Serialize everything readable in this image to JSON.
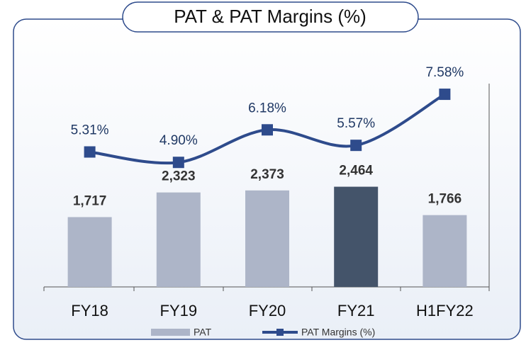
{
  "chart_data": {
    "type": "bar",
    "title": "PAT & PAT Margins (%)",
    "categories": [
      "FY18",
      "FY19",
      "FY20",
      "FY21",
      "H1FY22"
    ],
    "series": [
      {
        "name": "PAT",
        "type": "bar",
        "color": "#adb5c8",
        "colors": [
          "#adb5c8",
          "#adb5c8",
          "#adb5c8",
          "#44546a",
          "#adb5c8"
        ],
        "values": [
          1717,
          2323,
          2373,
          2464,
          1766
        ],
        "value_labels": [
          "1,717",
          "2,323",
          "2,373",
          "2,464",
          "1,766"
        ]
      },
      {
        "name": "PAT Margins (%)",
        "type": "line",
        "axis": "y2",
        "color": "#2e4b8c",
        "values": [
          5.31,
          4.9,
          6.18,
          5.57,
          7.58
        ],
        "value_labels": [
          "5.31%",
          "4.90%",
          "6.18%",
          "5.57%",
          "7.58%"
        ]
      }
    ],
    "ylim": [
      0,
      5000
    ],
    "y2lim": [
      0,
      8
    ],
    "legend": "bottom"
  }
}
